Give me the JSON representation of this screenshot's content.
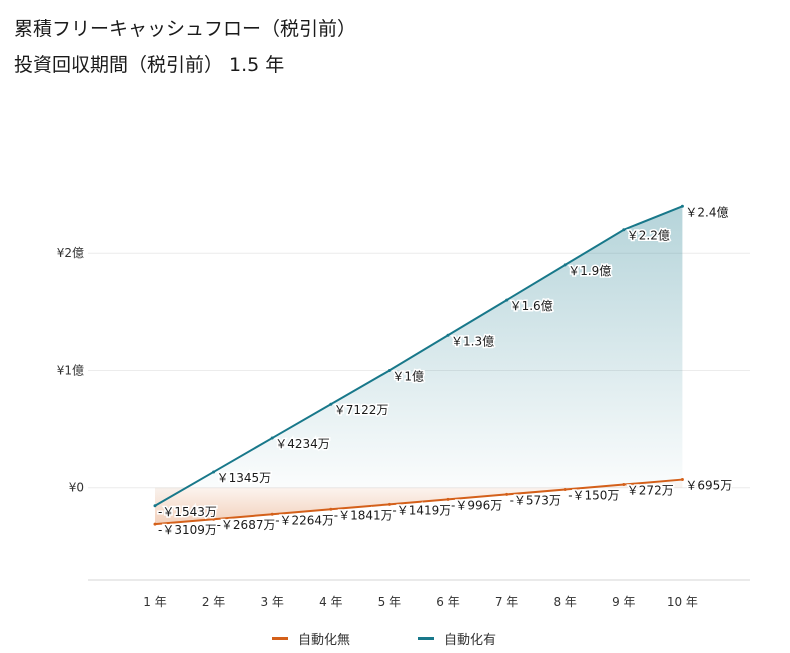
{
  "title": "累積フリーキャッシュフロー（税引前）",
  "subtitle": "投資回収期間（税引前） 1.5 年",
  "colors": {
    "manual": "#d4601a",
    "auto": "#18788a",
    "grid": "#ececec",
    "axis": "#d6d6d6"
  },
  "chart_data": {
    "type": "area",
    "categories": [
      "1 年",
      "2 年",
      "3 年",
      "4 年",
      "5 年",
      "6 年",
      "7 年",
      "8 年",
      "9 年",
      "10 年"
    ],
    "yunit": "万円",
    "ylim": [
      -7700,
      28800
    ],
    "yticks": [
      {
        "value": 0,
        "label": "¥0"
      },
      {
        "value": 10000,
        "label": "¥1億"
      },
      {
        "value": 20000,
        "label": "¥2億"
      }
    ],
    "grid": true,
    "legend_position": "bottom",
    "series": [
      {
        "name": "自動化無",
        "color": "#d4601a",
        "values": [
          -3109,
          -2687,
          -2264,
          -1841,
          -1419,
          -996,
          -573,
          -150,
          272,
          695
        ],
        "labels": [
          "-￥3109万",
          "-￥2687万",
          "-￥2264万",
          "-￥1841万",
          "-￥1419万",
          "-￥996万",
          "-￥573万",
          "-￥150万",
          "￥272万",
          "￥695万"
        ]
      },
      {
        "name": "自動化有",
        "color": "#18788a",
        "values": [
          -1543,
          1345,
          4234,
          7122,
          10000,
          13000,
          16000,
          19000,
          22000,
          24000
        ],
        "labels": [
          "-￥1543万",
          "￥1345万",
          "￥4234万",
          "￥7122万",
          "￥1億",
          "￥1.3億",
          "￥1.6億",
          "￥1.9億",
          "￥2.2億",
          "￥2.4億"
        ]
      }
    ]
  }
}
